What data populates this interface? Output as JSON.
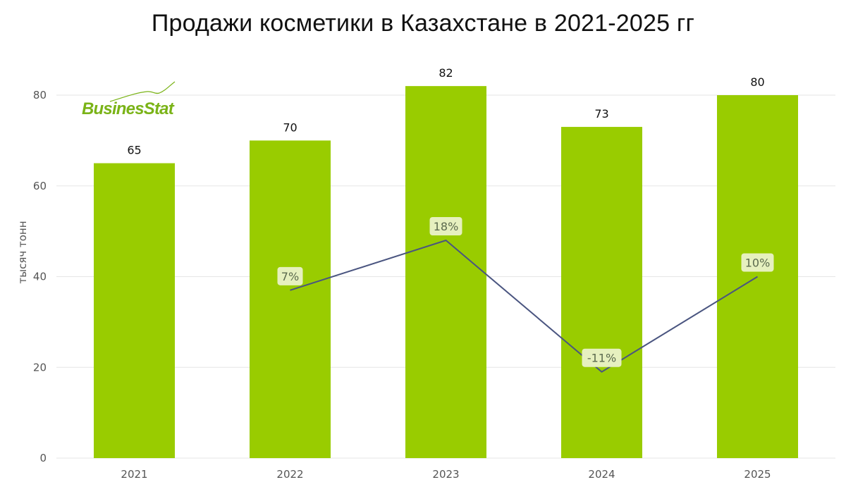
{
  "title": "Продажи косметики в Казахстане в 2021-2025 гг",
  "logo_text": "BusinesStat",
  "logo_color": "#7ab317",
  "colors": {
    "bar": "#99cc00",
    "line": "#4a5580",
    "label_bg": "#e6f0bf",
    "grid": "#e6e6e6"
  },
  "chart_data": {
    "type": "bar",
    "title": "Продажи косметики в Казахстане в 2021-2025 гг",
    "ylabel": "тысяч тонн",
    "xlabel": "",
    "categories": [
      "2021",
      "2022",
      "2023",
      "2024",
      "2025"
    ],
    "ylim": [
      0,
      80
    ],
    "yticks": [
      "0",
      "20",
      "40",
      "60",
      "80"
    ],
    "grid": true,
    "series": [
      {
        "type": "bar",
        "values": [
          65,
          70,
          82,
          73,
          80
        ],
        "value_labels": [
          "65",
          "70",
          "82",
          "73",
          "80"
        ]
      },
      {
        "type": "line",
        "values": [
          null,
          7,
          18,
          -11,
          10
        ],
        "value_labels": [
          "",
          "7%",
          "18%",
          "-11%",
          "10%"
        ]
      }
    ],
    "line_ylim": [
      -30,
      50
    ]
  }
}
